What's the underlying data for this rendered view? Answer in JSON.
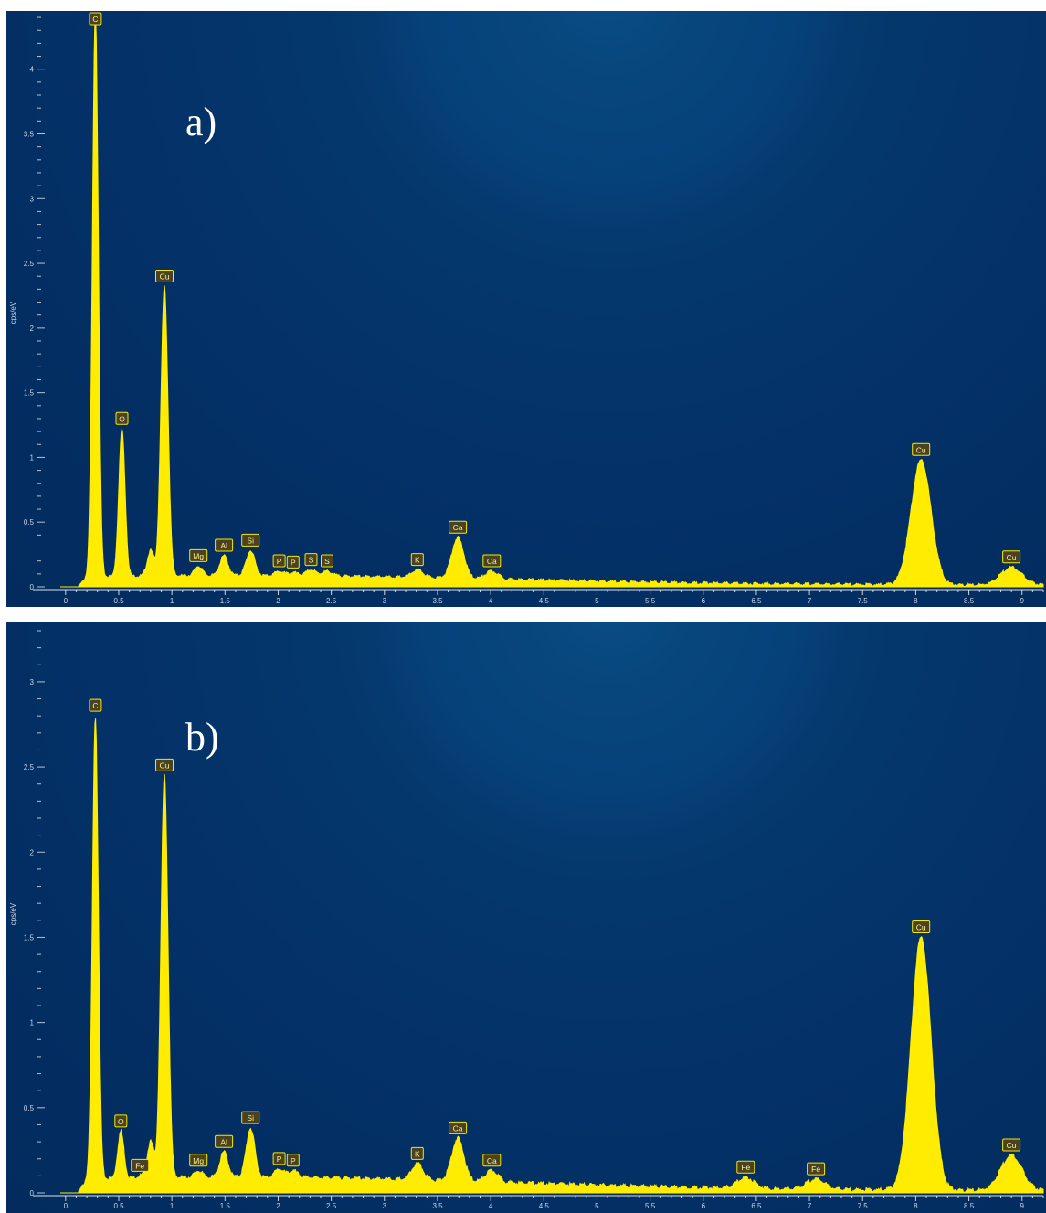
{
  "colors": {
    "spectrum": "#ffec00",
    "label_bg": "#4a4220",
    "label_border": "#f6e800",
    "axis_text": "#c9d6e5",
    "axis_line": "#ffffff"
  },
  "chart_data": [
    {
      "type": "area",
      "panel_label": "a)",
      "xlabel": "",
      "ylabel": "cps/eV",
      "xlim": [
        -0.05,
        9.2
      ],
      "ylim": [
        0,
        4.45
      ],
      "x_ticks": [
        0,
        0.5,
        1,
        1.5,
        2,
        2.5,
        3,
        3.5,
        4,
        4.5,
        5,
        5.5,
        6,
        6.5,
        7,
        7.5,
        8,
        8.5,
        9
      ],
      "x_tick_labels": [
        "0",
        "0.5",
        "1",
        "1.5",
        "2",
        "2.5",
        "3",
        "3.5",
        "4",
        "4.5",
        "5",
        "5.5",
        "6",
        "6.5",
        "7",
        "7.5",
        "8",
        "8.5",
        "9"
      ],
      "y_ticks": [
        0,
        0.5,
        1,
        1.5,
        2,
        2.5,
        3,
        3.5,
        4
      ],
      "y_tick_labels": [
        "0",
        "0.5",
        "1",
        "1.5",
        "2",
        "2.5",
        "3",
        "3.5",
        "4"
      ],
      "background": 0.075,
      "peaks": [
        {
          "element": "C",
          "x": 0.28,
          "y": 4.45,
          "label": "C"
        },
        {
          "element": "O",
          "x": 0.53,
          "y": 1.22,
          "label": "O"
        },
        {
          "element": "Cu",
          "x": 0.8,
          "y": 0.28,
          "label": ""
        },
        {
          "element": "Cu",
          "x": 0.93,
          "y": 2.32,
          "label": "Cu"
        },
        {
          "element": "Mg",
          "x": 1.25,
          "y": 0.16,
          "label": "Mg"
        },
        {
          "element": "Al",
          "x": 1.49,
          "y": 0.24,
          "label": "Al"
        },
        {
          "element": "Si",
          "x": 1.74,
          "y": 0.28,
          "label": "Si"
        },
        {
          "element": "P",
          "x": 2.01,
          "y": 0.12,
          "label": "P"
        },
        {
          "element": "P",
          "x": 2.14,
          "y": 0.11,
          "label": "P"
        },
        {
          "element": "S",
          "x": 2.31,
          "y": 0.13,
          "label": "S"
        },
        {
          "element": "S",
          "x": 2.46,
          "y": 0.12,
          "label": "S"
        },
        {
          "element": "K",
          "x": 3.31,
          "y": 0.13,
          "label": "K"
        },
        {
          "element": "Ca",
          "x": 3.69,
          "y": 0.38,
          "label": "Ca"
        },
        {
          "element": "Ca",
          "x": 4.01,
          "y": 0.12,
          "label": "Ca"
        },
        {
          "element": "Cu",
          "x": 8.05,
          "y": 0.98,
          "label": "Cu"
        },
        {
          "element": "Cu",
          "x": 8.9,
          "y": 0.15,
          "label": "Cu"
        }
      ]
    },
    {
      "type": "area",
      "panel_label": "b)",
      "xlabel": "",
      "ylabel": "cps/eV",
      "xlim": [
        -0.05,
        9.2
      ],
      "ylim": [
        0,
        3.3
      ],
      "x_ticks": [
        0,
        0.5,
        1,
        1.5,
        2,
        2.5,
        3,
        3.5,
        4,
        4.5,
        5,
        5.5,
        6,
        6.5,
        7,
        7.5,
        8,
        8.5,
        9
      ],
      "x_tick_labels": [
        "0",
        "0.5",
        "1",
        "1.5",
        "2",
        "2.5",
        "3",
        "3.5",
        "4",
        "4.5",
        "5",
        "5.5",
        "6",
        "6.5",
        "7",
        "7.5",
        "8",
        "8.5",
        "9"
      ],
      "y_ticks": [
        0,
        0.5,
        1,
        1.5,
        2,
        2.5,
        3
      ],
      "y_tick_labels": [
        "0",
        "0.5",
        "1",
        "1.5",
        "2",
        "2.5",
        "3"
      ],
      "background": 0.08,
      "peaks": [
        {
          "element": "C",
          "x": 0.28,
          "y": 2.8,
          "label": "C"
        },
        {
          "element": "O",
          "x": 0.52,
          "y": 0.36,
          "label": "O"
        },
        {
          "element": "Fe",
          "x": 0.7,
          "y": 0.1,
          "label": "Fe"
        },
        {
          "element": "Cu",
          "x": 0.8,
          "y": 0.3,
          "label": ""
        },
        {
          "element": "Cu",
          "x": 0.93,
          "y": 2.45,
          "label": "Cu"
        },
        {
          "element": "Mg",
          "x": 1.25,
          "y": 0.13,
          "label": "Mg"
        },
        {
          "element": "Al",
          "x": 1.49,
          "y": 0.24,
          "label": "Al"
        },
        {
          "element": "Si",
          "x": 1.74,
          "y": 0.38,
          "label": "Si"
        },
        {
          "element": "P",
          "x": 2.01,
          "y": 0.14,
          "label": "P"
        },
        {
          "element": "P",
          "x": 2.14,
          "y": 0.13,
          "label": "P"
        },
        {
          "element": "K",
          "x": 3.31,
          "y": 0.17,
          "label": "K"
        },
        {
          "element": "Ca",
          "x": 3.69,
          "y": 0.32,
          "label": "Ca"
        },
        {
          "element": "Ca",
          "x": 4.01,
          "y": 0.13,
          "label": "Ca"
        },
        {
          "element": "Fe",
          "x": 6.4,
          "y": 0.09,
          "label": "Fe"
        },
        {
          "element": "Fe",
          "x": 7.06,
          "y": 0.08,
          "label": "Fe"
        },
        {
          "element": "Cu",
          "x": 8.05,
          "y": 1.5,
          "label": "Cu"
        },
        {
          "element": "Cu",
          "x": 8.9,
          "y": 0.22,
          "label": "Cu"
        }
      ]
    }
  ]
}
